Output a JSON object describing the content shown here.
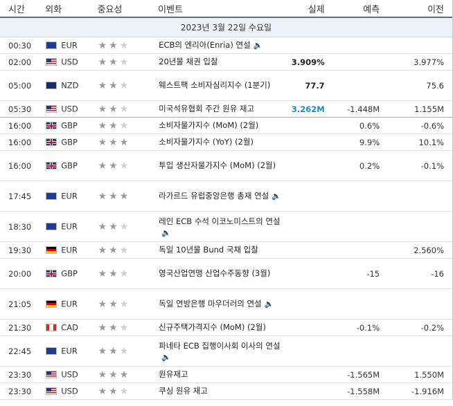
{
  "header": {
    "time": "시간",
    "currency": "외화",
    "importance": "중요성",
    "event": "이벤트",
    "actual": "실제",
    "forecast": "예측",
    "previous": "이전"
  },
  "date_label": "2023년 3월 22일 수요일",
  "icons": {
    "sound": "speaker-icon",
    "star": "star-icon"
  },
  "colors": {
    "actual_up": "#1e88c8",
    "actual_default": "#222222",
    "star_on": "#9a9a9a",
    "star_off": "#cfcfcf"
  },
  "rows": [
    {
      "time": "00:30",
      "flag": "EU",
      "currency": "EUR",
      "stars": 2,
      "event": "ECB의 엔리아(Enria) 연설",
      "speech": true,
      "actual": "",
      "actual_color": "",
      "forecast": "",
      "previous": "",
      "sep": false
    },
    {
      "time": "02:00",
      "flag": "US",
      "currency": "USD",
      "stars": 2,
      "event": "20년물 채권 입찰",
      "speech": false,
      "actual": "3.909%",
      "actual_color": "",
      "forecast": "",
      "previous": "3.977%",
      "sep": false
    },
    {
      "time": "05:00",
      "flag": "NZ",
      "currency": "NZD",
      "stars": 2,
      "event": "웨스트팩 소비자심리지수 (1분기)",
      "speech": false,
      "actual": "77.7",
      "actual_color": "",
      "forecast": "",
      "previous": "75.6",
      "sep": false
    },
    {
      "time": "05:30",
      "flag": "US",
      "currency": "USD",
      "stars": 2,
      "event": "미국석유협회 주간 원유 재고",
      "speech": false,
      "actual": "3.262M",
      "actual_color": "blue",
      "forecast": "-1.448M",
      "previous": "1.155M",
      "sep": true
    },
    {
      "time": "16:00",
      "flag": "GB",
      "currency": "GBP",
      "stars": 2,
      "event": "소비자물가지수 (MoM) (2월)",
      "speech": false,
      "actual": "",
      "actual_color": "",
      "forecast": "0.6%",
      "previous": "-0.6%",
      "sep": false
    },
    {
      "time": "16:00",
      "flag": "GB",
      "currency": "GBP",
      "stars": 3,
      "event": "소비자물가지수 (YoY) (2월)",
      "speech": false,
      "actual": "",
      "actual_color": "",
      "forecast": "9.9%",
      "previous": "10.1%",
      "sep": false
    },
    {
      "time": "16:00",
      "flag": "GB",
      "currency": "GBP",
      "stars": 2,
      "event": "투입 생산자물가지수 (MoM) (2월)",
      "speech": false,
      "actual": "",
      "actual_color": "",
      "forecast": "0.2%",
      "previous": "-0.1%",
      "sep": false
    },
    {
      "time": "17:45",
      "flag": "EU",
      "currency": "EUR",
      "stars": 3,
      "event": "라가르드 유럽중앙은행 총재 연설",
      "speech": true,
      "actual": "",
      "actual_color": "",
      "forecast": "",
      "previous": "",
      "sep": false
    },
    {
      "time": "18:30",
      "flag": "EU",
      "currency": "EUR",
      "stars": 2,
      "event": "레인 ECB 수석 이코노미스트의 연설",
      "speech": true,
      "actual": "",
      "actual_color": "",
      "forecast": "",
      "previous": "",
      "sep": false
    },
    {
      "time": "19:30",
      "flag": "DE",
      "currency": "EUR",
      "stars": 2,
      "event": "독일 10년물 Bund 국채 입찰",
      "speech": false,
      "actual": "",
      "actual_color": "",
      "forecast": "",
      "previous": "2.560%",
      "sep": false
    },
    {
      "time": "20:00",
      "flag": "GB",
      "currency": "GBP",
      "stars": 2,
      "event": "영국산업연맹 산업수주동향 (3월)",
      "speech": false,
      "actual": "",
      "actual_color": "",
      "forecast": "-15",
      "previous": "-16",
      "sep": false
    },
    {
      "time": "21:05",
      "flag": "DE",
      "currency": "EUR",
      "stars": 2,
      "event": "독일 연방은행 마우더러의 연설",
      "speech": true,
      "actual": "",
      "actual_color": "",
      "forecast": "",
      "previous": "",
      "sep": false
    },
    {
      "time": "21:30",
      "flag": "CA",
      "currency": "CAD",
      "stars": 2,
      "event": "신규주택가격지수 (MoM) (2월)",
      "speech": false,
      "actual": "",
      "actual_color": "",
      "forecast": "-0.1%",
      "previous": "-0.2%",
      "sep": false
    },
    {
      "time": "22:45",
      "flag": "EU",
      "currency": "EUR",
      "stars": 2,
      "event": "파네타 ECB 집행이사회 이사의 연설",
      "speech": true,
      "actual": "",
      "actual_color": "",
      "forecast": "",
      "previous": "",
      "sep": false
    },
    {
      "time": "23:30",
      "flag": "US",
      "currency": "USD",
      "stars": 3,
      "event": "원유재고",
      "speech": false,
      "actual": "",
      "actual_color": "",
      "forecast": "-1.565M",
      "previous": "1.550M",
      "sep": false
    },
    {
      "time": "23:30",
      "flag": "US",
      "currency": "USD",
      "stars": 2,
      "event": "쿠싱 원유 재고",
      "speech": false,
      "actual": "",
      "actual_color": "",
      "forecast": "-1.558M",
      "previous": "-1.916M",
      "sep": false
    }
  ]
}
